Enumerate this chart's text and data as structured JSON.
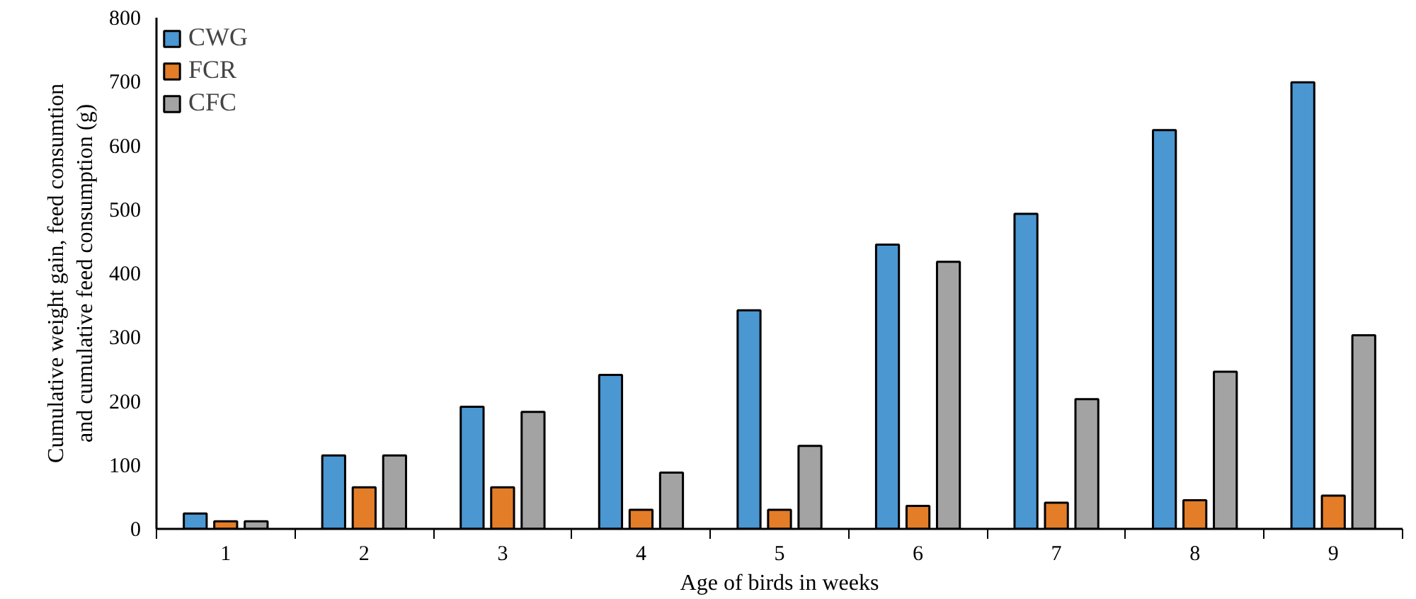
{
  "chart_data": {
    "type": "bar",
    "xlabel": "Age of birds in weeks",
    "ylabel": "Cumulative weight gain, feed consumtion\nand cumulative feed consumption (g)",
    "categories": [
      "1",
      "2",
      "3",
      "4",
      "5",
      "6",
      "7",
      "8",
      "9"
    ],
    "series": [
      {
        "name": "CWG",
        "color": "#4a97d2",
        "values": [
          24,
          115,
          191,
          241,
          342,
          445,
          493,
          624,
          699
        ]
      },
      {
        "name": "FCR",
        "color": "#e47d28",
        "values": [
          12,
          65,
          65,
          30,
          30,
          36,
          41,
          45,
          52
        ]
      },
      {
        "name": "CFC",
        "color": "#a3a3a3",
        "values": [
          12,
          115,
          183,
          88,
          130,
          418,
          203,
          246,
          303
        ]
      }
    ],
    "ylim": [
      0,
      800
    ],
    "yticks": [
      0,
      100,
      200,
      300,
      400,
      500,
      600,
      700,
      800
    ],
    "legend": "top left"
  }
}
